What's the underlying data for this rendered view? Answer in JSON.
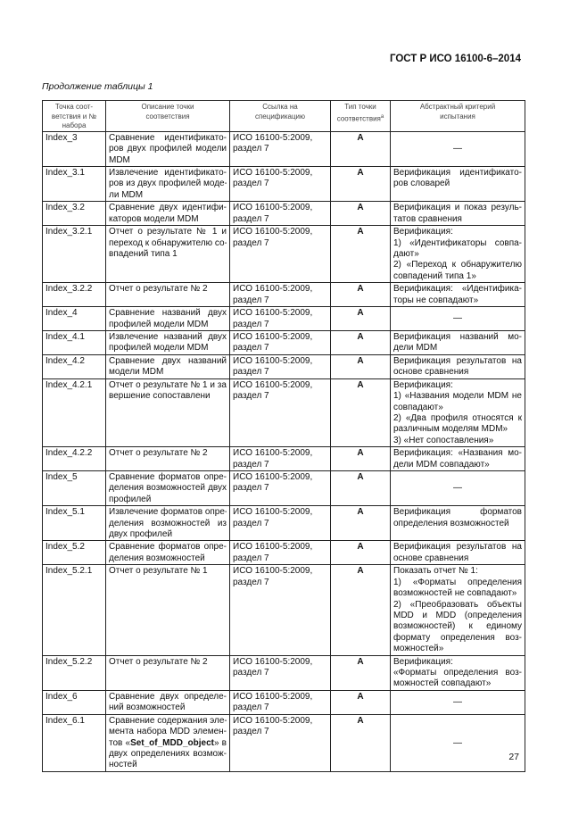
{
  "header": {
    "standard": "ГОСТ Р ИСО 16100-6–2014"
  },
  "caption": "Продолжение таблицы 1",
  "table": {
    "columns": [
      "Точка соот-|ветствия и №|набора",
      "Описание точки|соответствия",
      "Ссылка на|спецификацию",
      "Тип точки|соответствия",
      "Абстрактный критерий|испытания"
    ],
    "footnote_mark": "а",
    "rows": [
      {
        "id": "Index_3",
        "h": 36,
        "desc": [
          "Сравнение идентификато-",
          "ров двух профилей модели",
          "MDM"
        ],
        "ref": [
          "ИСО 16100-5:2009,",
          "раздел 7"
        ],
        "type": "A",
        "crit": null
      },
      {
        "id": "Index_3.1",
        "h": 38,
        "desc": [
          "Извлечение идентификато-",
          "ров из двух профилей моде-",
          "ли MDM"
        ],
        "ref": [
          "ИСО 16100-5:2009,",
          "раздел 7"
        ],
        "type": "A",
        "crit": [
          "Верификация идентификато-",
          "ров словарей"
        ]
      },
      {
        "id": "Index_3.2",
        "h": 27,
        "desc": [
          "Сравнение двух идентифи-",
          "каторов модели MDM"
        ],
        "ref": [
          "ИСО 16100-5:2009,",
          "раздел 7"
        ],
        "type": "A",
        "crit": [
          "Верификация и показ резуль-",
          "татов сравнения"
        ]
      },
      {
        "id": "Index_3.2.1",
        "h": 61,
        "desc": [
          "Отчет о результате № 1 и",
          "переход к обнаружителю со-",
          "впадений типа 1"
        ],
        "ref": [
          "ИСО 16100-5:2009,",
          "раздел 7"
        ],
        "type": "A",
        "crit": [
          "Верификация:",
          "1) «Идентификаторы совпа-",
          "дают»",
          "2) «Переход к обнаружителю",
          "совпадений типа 1»"
        ]
      },
      {
        "id": "Index_3.2.2",
        "h": 27,
        "desc": [
          "Отчет о результате № 2"
        ],
        "ref": [
          "ИСО 16100-5:2009,",
          "раздел 7"
        ],
        "type": "A",
        "crit": [
          "Верификация: «Идентифика-",
          "торы не совпадают»"
        ]
      },
      {
        "id": "Index_4",
        "h": 21,
        "desc": [
          "Сравнение названий двух",
          "профилей модели MDM"
        ],
        "ref": [
          "ИСО 16100-5:2009,",
          "раздел 7"
        ],
        "type": "A",
        "crit": null
      },
      {
        "id": "Index_4.1",
        "h": 26,
        "desc": [
          "Извлечение названий двух",
          "профилей модели MDM"
        ],
        "ref": [
          "ИСО 16100-5:2009,",
          "раздел 7"
        ],
        "type": "A",
        "crit": [
          "Верификация названий мо-",
          "дели MDM"
        ]
      },
      {
        "id": "Index_4.2",
        "h": 25,
        "desc": [
          "Сравнение двух названий",
          "модели MDM"
        ],
        "ref": [
          "ИСО 16100-5:2009,",
          "раздел 7"
        ],
        "type": "A",
        "crit": [
          "Верификация результатов на",
          "основе сравнения"
        ]
      },
      {
        "id": "Index_4.2.1",
        "h": 75,
        "desc": [
          "Отчет о результате № 1 и за-",
          "вершение сопоставлени"
        ],
        "ref": [
          "ИСО 16100-5:2009,",
          "раздел 7"
        ],
        "type": "A",
        "crit": [
          "Верификация:",
          "1) «Названия модели MDM не",
          "совпадают»",
          "2) «Два профиля относятся к",
          "различным моделям MDM»",
          "3) «Нет сопоставления»"
        ]
      },
      {
        "id": "Index_4.2.2",
        "h": 26,
        "desc": [
          "Отчет о результате № 2"
        ],
        "ref": [
          "ИСО 16100-5:2009,",
          "раздел 7"
        ],
        "type": "A",
        "crit": [
          "Верификация: «Названия мо-",
          "дели MDM совпадают»"
        ]
      },
      {
        "id": "Index_5",
        "h": 38,
        "desc": [
          "Сравнение форматов опре-",
          "деления возможностей двух",
          "профилей"
        ],
        "ref": [
          "ИСО 16100-5:2009,",
          "раздел 7"
        ],
        "type": "A",
        "crit": null
      },
      {
        "id": "Index_5.1",
        "h": 38,
        "desc": [
          "Извлечение форматов опре-",
          "деления возможностей из",
          "двух профилей"
        ],
        "ref": [
          "ИСО 16100-5:2009,",
          "раздел 7"
        ],
        "type": "A",
        "crit": [
          "Верификация форматов",
          "определения возможностей"
        ]
      },
      {
        "id": "Index_5.2",
        "h": 27,
        "desc": [
          "Сравнение форматов опре-",
          "деления возможностей"
        ],
        "ref": [
          "ИСО 16100-5:2009,",
          "раздел 7"
        ],
        "type": "A",
        "crit": [
          "Верификация результатов на",
          "основе сравнения"
        ]
      },
      {
        "id": "Index_5.2.1",
        "h": 96,
        "desc": [
          "Отчет о результате № 1"
        ],
        "ref": [
          "ИСО 16100-5:2009,",
          "раздел 7"
        ],
        "type": "A",
        "crit": [
          "Показать отчет № 1:",
          "1) «Форматы определения",
          "возможностей не совпадают»",
          "2) «Преобразовать объекты",
          "MDD и MDD (определения",
          "возможностей) к единому",
          "формату определения воз-",
          "можностей»"
        ]
      },
      {
        "id": "Index_5.2.2",
        "h": 37,
        "desc": [
          "Отчет о результате № 2"
        ],
        "ref": [
          "ИСО 16100-5:2009,",
          "раздел 7"
        ],
        "type": "A",
        "crit": [
          "Верификация:",
          "«Форматы определения воз-",
          "можностей совпадают»"
        ]
      },
      {
        "id": "Index_6",
        "h": 27,
        "desc": [
          "Сравнение двух определе-",
          "ний возможностей"
        ],
        "ref": [
          "ИСО 16100-5:2009,",
          "раздел 7"
        ],
        "type": "A",
        "crit": null
      },
      {
        "id": "Index_6.1",
        "h": 61,
        "desc": [
          "Сравнение содержания эле-",
          "мента набора MDD элемен-",
          {
            "pre": "тов «",
            "bold": "Set_of_MDD_object",
            "post": "» в"
          },
          "двух определениях возмож-",
          "ностей"
        ],
        "ref": [
          "ИСО 16100-5:2009,",
          "раздел 7"
        ],
        "type": "A",
        "crit": null
      }
    ],
    "dash": "—"
  },
  "page_number": "27"
}
